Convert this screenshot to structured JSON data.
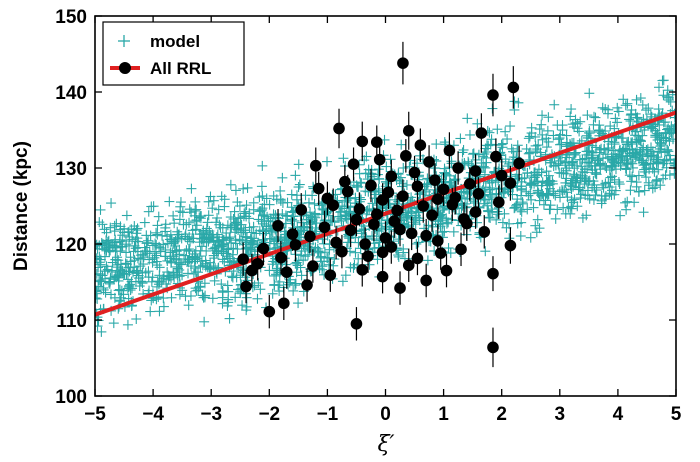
{
  "chart_data": {
    "type": "scatter",
    "xlabel": "ξ′",
    "ylabel": "Distance (kpc)",
    "xlim": [
      -5,
      5
    ],
    "ylim": [
      100,
      150
    ],
    "xticks": [
      -5,
      -4,
      -3,
      -2,
      -1,
      0,
      1,
      2,
      3,
      4,
      5
    ],
    "yticks": [
      100,
      110,
      120,
      130,
      140,
      150
    ],
    "grid": false,
    "legend_position": "top-left",
    "legend": [
      {
        "label": "model",
        "marker": "plus",
        "color": "#2aa8a8"
      },
      {
        "label": "All RRL",
        "marker": "filled-circle-line",
        "color": "#000000",
        "line_color": "#e02020"
      }
    ],
    "fit_line": {
      "name": "All RRL",
      "color": "#e02020",
      "x": [
        -5,
        5
      ],
      "y": [
        110.7,
        137.3
      ]
    },
    "model_trend": {
      "x": [
        -5,
        -2.5,
        0,
        2.5,
        5
      ],
      "y": [
        116.5,
        119.5,
        124,
        129.5,
        134
      ],
      "spread": 11
    },
    "rrl_points": [
      {
        "x": 0.3,
        "y": 143.8,
        "err": 2.8
      },
      {
        "x": 2.2,
        "y": 140.6,
        "err": 2.8
      },
      {
        "x": 1.85,
        "y": 139.6,
        "err": 2.8
      },
      {
        "x": -0.8,
        "y": 135.2,
        "err": 2.6
      },
      {
        "x": -0.4,
        "y": 133.5,
        "err": 2.6
      },
      {
        "x": 1.65,
        "y": 134.6,
        "err": 2.6
      },
      {
        "x": 0.4,
        "y": 134.9,
        "err": 2.5
      },
      {
        "x": 1.1,
        "y": 132.3,
        "err": 2.4
      },
      {
        "x": -1.2,
        "y": 130.3,
        "err": 2.4
      },
      {
        "x": 1.9,
        "y": 131.5,
        "err": 2.4
      },
      {
        "x": 2.3,
        "y": 130.6,
        "err": 2.3
      },
      {
        "x": 2.15,
        "y": 128.0,
        "err": 2.3
      },
      {
        "x": -0.5,
        "y": 109.5,
        "err": 2.2
      },
      {
        "x": 1.85,
        "y": 106.4,
        "err": 2.6
      },
      {
        "x": 1.85,
        "y": 116.1,
        "err": 2.3
      },
      {
        "x": -2.0,
        "y": 111.1,
        "err": 2.2
      },
      {
        "x": -1.75,
        "y": 112.2,
        "err": 2.2
      },
      {
        "x": -2.4,
        "y": 114.4,
        "err": 2.2
      },
      {
        "x": 2.15,
        "y": 119.8,
        "err": 2.4
      },
      {
        "x": 1.4,
        "y": 122.7,
        "err": 2.3
      },
      {
        "x": 1.05,
        "y": 116.5,
        "err": 2.2
      },
      {
        "x": 0.7,
        "y": 115.2,
        "err": 2.2
      },
      {
        "x": 0.25,
        "y": 114.2,
        "err": 2.2
      },
      {
        "x": -0.05,
        "y": 115.7,
        "err": 2.2
      },
      {
        "x": -2.3,
        "y": 116.5,
        "err": 2.2
      },
      {
        "x": -1.8,
        "y": 118.2,
        "err": 2.2
      },
      {
        "x": -1.6,
        "y": 121.3,
        "err": 2.2
      },
      {
        "x": -1.25,
        "y": 117.1,
        "err": 2.2
      },
      {
        "x": -0.95,
        "y": 115.9,
        "err": 2.2
      },
      {
        "x": -0.75,
        "y": 119.0,
        "err": 2.2
      },
      {
        "x": -0.3,
        "y": 118.4,
        "err": 2.2
      },
      {
        "x": 0.1,
        "y": 119.6,
        "err": 2.2
      },
      {
        "x": 0.55,
        "y": 118.1,
        "err": 2.2
      },
      {
        "x": 0.9,
        "y": 120.4,
        "err": 2.2
      },
      {
        "x": 1.3,
        "y": 119.3,
        "err": 2.2
      },
      {
        "x": 1.55,
        "y": 124.2,
        "err": 2.2
      },
      {
        "x": -1.05,
        "y": 122.2,
        "err": 2.2
      },
      {
        "x": -0.6,
        "y": 121.8,
        "err": 2.2
      },
      {
        "x": -0.2,
        "y": 122.6,
        "err": 2.2
      },
      {
        "x": 0.15,
        "y": 123.0,
        "err": 2.2
      },
      {
        "x": 0.45,
        "y": 121.4,
        "err": 2.2
      },
      {
        "x": 0.8,
        "y": 123.8,
        "err": 2.2
      },
      {
        "x": 1.15,
        "y": 125.2,
        "err": 2.2
      },
      {
        "x": -0.9,
        "y": 125.1,
        "err": 2.2
      },
      {
        "x": -0.45,
        "y": 124.6,
        "err": 2.2
      },
      {
        "x": -0.05,
        "y": 125.8,
        "err": 2.2
      },
      {
        "x": 0.3,
        "y": 126.3,
        "err": 2.2
      },
      {
        "x": 0.65,
        "y": 125.0,
        "err": 2.2
      },
      {
        "x": 1.0,
        "y": 127.2,
        "err": 2.2
      },
      {
        "x": 1.45,
        "y": 127.9,
        "err": 2.2
      },
      {
        "x": -1.15,
        "y": 127.3,
        "err": 2.2
      },
      {
        "x": -0.7,
        "y": 128.2,
        "err": 2.2
      },
      {
        "x": -0.25,
        "y": 127.7,
        "err": 2.2
      },
      {
        "x": 0.1,
        "y": 128.9,
        "err": 2.2
      },
      {
        "x": 0.5,
        "y": 129.4,
        "err": 2.2
      },
      {
        "x": 0.85,
        "y": 128.4,
        "err": 2.2
      },
      {
        "x": 1.25,
        "y": 130.0,
        "err": 2.2
      },
      {
        "x": -0.55,
        "y": 130.5,
        "err": 2.2
      },
      {
        "x": -0.1,
        "y": 131.1,
        "err": 2.2
      },
      {
        "x": 0.35,
        "y": 131.6,
        "err": 2.2
      },
      {
        "x": 0.75,
        "y": 130.8,
        "err": 2.2
      },
      {
        "x": 1.55,
        "y": 129.6,
        "err": 2.2
      },
      {
        "x": -1.45,
        "y": 124.5,
        "err": 2.2
      },
      {
        "x": -1.85,
        "y": 122.4,
        "err": 2.2
      },
      {
        "x": -2.1,
        "y": 119.4,
        "err": 2.2
      },
      {
        "x": -2.45,
        "y": 118.0,
        "err": 2.2
      },
      {
        "x": -1.55,
        "y": 119.9,
        "err": 2.2
      },
      {
        "x": -1.35,
        "y": 114.6,
        "err": 2.2
      },
      {
        "x": -0.4,
        "y": 116.6,
        "err": 2.2
      },
      {
        "x": 0.0,
        "y": 120.8,
        "err": 2.2
      },
      {
        "x": 0.4,
        "y": 117.2,
        "err": 2.2
      },
      {
        "x": 0.95,
        "y": 118.8,
        "err": 2.2
      },
      {
        "x": 1.7,
        "y": 121.6,
        "err": 2.2
      },
      {
        "x": 1.95,
        "y": 125.5,
        "err": 2.2
      },
      {
        "x": 2.0,
        "y": 129.0,
        "err": 2.2
      },
      {
        "x": -0.15,
        "y": 133.4,
        "err": 2.2
      },
      {
        "x": 0.6,
        "y": 133.0,
        "err": 2.2
      },
      {
        "x": 1.2,
        "y": 126.1,
        "err": 2.2
      },
      {
        "x": -0.85,
        "y": 120.2,
        "err": 2.2
      },
      {
        "x": 0.2,
        "y": 124.4,
        "err": 2.2
      },
      {
        "x": 0.7,
        "y": 121.1,
        "err": 2.2
      },
      {
        "x": -0.35,
        "y": 120.0,
        "err": 2.2
      },
      {
        "x": 1.35,
        "y": 123.3,
        "err": 2.2
      },
      {
        "x": -1.0,
        "y": 126.0,
        "err": 2.2
      },
      {
        "x": -0.15,
        "y": 123.9,
        "err": 2.2
      },
      {
        "x": 0.05,
        "y": 126.8,
        "err": 2.2
      },
      {
        "x": -0.65,
        "y": 126.9,
        "err": 2.2
      },
      {
        "x": 1.6,
        "y": 126.6,
        "err": 2.2
      },
      {
        "x": -1.3,
        "y": 121.0,
        "err": 2.2
      },
      {
        "x": -1.7,
        "y": 116.3,
        "err": 2.2
      },
      {
        "x": -2.2,
        "y": 117.4,
        "err": 2.2
      },
      {
        "x": 0.55,
        "y": 127.6,
        "err": 2.2
      },
      {
        "x": 0.9,
        "y": 125.9,
        "err": 2.2
      },
      {
        "x": -0.5,
        "y": 123.2,
        "err": 2.2
      },
      {
        "x": 0.25,
        "y": 121.9,
        "err": 2.2
      },
      {
        "x": -0.05,
        "y": 118.9,
        "err": 2.2
      }
    ]
  }
}
